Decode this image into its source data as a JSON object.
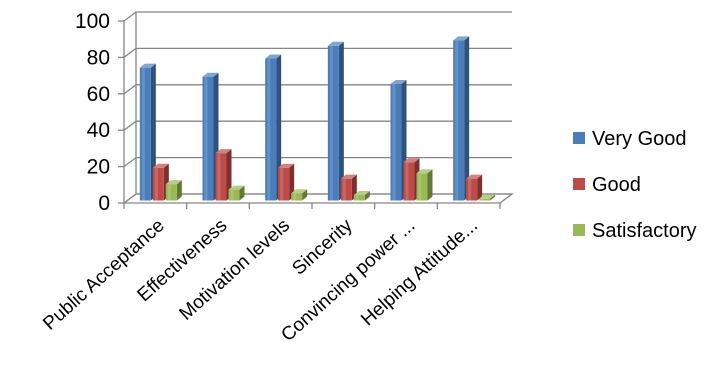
{
  "chart_data": {
    "type": "bar",
    "title": "",
    "xlabel": "",
    "ylabel": "",
    "ylim": [
      0,
      100
    ],
    "yticks": [
      "0",
      "20",
      "40",
      "60",
      "80",
      "100"
    ],
    "grid": true,
    "legend_position": "right",
    "categories": [
      "Public Acceptance",
      "Effectiveness",
      "Motivation levels",
      "Sincerity",
      "Convincing power ...",
      "Helping Attitude..."
    ],
    "series": [
      {
        "name": "Very Good",
        "color": "#4a7ebb",
        "values": [
          73,
          68,
          78,
          85,
          64,
          88
        ]
      },
      {
        "name": "Good",
        "color": "#be4b48",
        "values": [
          18,
          26,
          18,
          12,
          21,
          12
        ]
      },
      {
        "name": "Satisfactory",
        "color": "#98b954",
        "values": [
          9,
          6,
          4,
          3,
          15,
          1
        ]
      }
    ]
  }
}
